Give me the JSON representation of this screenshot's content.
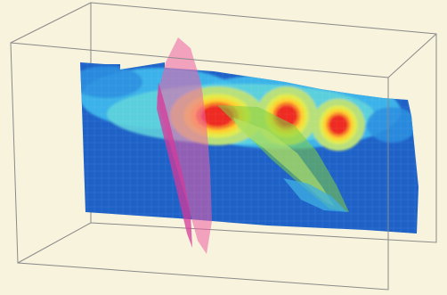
{
  "scene": {
    "kind": "3d-volume-render",
    "background_color": "#f7f3dc",
    "box_color": "#8a8a8a",
    "heatmap_palette": [
      "#1e62c8",
      "#2a8fe0",
      "#40c0ee",
      "#62d6dc",
      "#b8e07a",
      "#e3ea4a",
      "#ffd02e",
      "#f7822a",
      "#ee2a22"
    ],
    "fault_colors": {
      "pink_plane": "#f05fa5",
      "magenta_edge": "#d63a9a",
      "green_surface": "#7fcf3e",
      "cyan_surface": "#3fb0e2"
    },
    "anomalies": [
      {
        "name": "left-anomaly",
        "level": 1.0
      },
      {
        "name": "middle-anomaly",
        "level": 1.0
      },
      {
        "name": "right-anomaly",
        "level": 0.95
      }
    ]
  }
}
